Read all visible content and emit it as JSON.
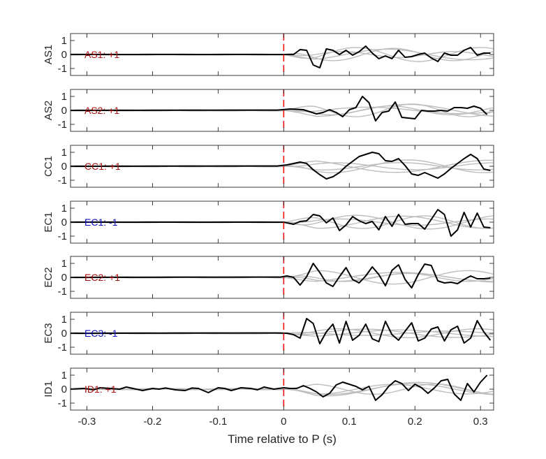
{
  "chart_data": {
    "type": "line",
    "xlabel": "Time relative to P (s)",
    "xlim": [
      -0.325,
      0.32
    ],
    "xticks": [
      -0.3,
      -0.2,
      -0.1,
      0,
      0.1,
      0.2,
      0.3
    ],
    "xtick_labels": [
      "-0.3",
      "-0.2",
      "-0.1",
      "0",
      "0.1",
      "0.2",
      "0.3"
    ],
    "ylim": [
      -1.5,
      1.5
    ],
    "yticks": [
      -1,
      0,
      1
    ],
    "ytick_labels": [
      "-1",
      "0",
      "1"
    ],
    "p_arrival_time": 0,
    "grid": false,
    "colors": {
      "main_trace": "#000000",
      "other_traces": "#bdbdbd",
      "p_marker": "#ee1111",
      "positive_polarity": "#aa1111",
      "negative_polarity": "#1111bb"
    },
    "panels": [
      {
        "station": "AS1",
        "polarity_label": "AS1: +1",
        "polarity": 1,
        "x": [
          -0.325,
          0.0,
          0.015,
          0.025,
          0.035,
          0.045,
          0.055,
          0.065,
          0.075,
          0.085,
          0.095,
          0.105,
          0.115,
          0.125,
          0.135,
          0.145,
          0.155,
          0.165,
          0.175,
          0.185,
          0.195,
          0.205,
          0.215,
          0.225,
          0.235,
          0.245,
          0.255,
          0.265,
          0.275,
          0.285,
          0.295,
          0.305,
          0.315
        ],
        "y": [
          0,
          0,
          0,
          0.35,
          0.3,
          -0.75,
          -0.95,
          0.4,
          0.3,
          0,
          0.3,
          -0.05,
          0.2,
          0.6,
          0.1,
          -0.3,
          -0.1,
          -0.3,
          0.3,
          -0.2,
          -0.15,
          0,
          0.1,
          -0.25,
          -0.5,
          0.1,
          -0.05,
          -0.05,
          0.3,
          0.5,
          -0.05,
          0.1,
          0.1
        ]
      },
      {
        "station": "AS2",
        "polarity_label": "AS2: +1",
        "polarity": 1,
        "x": [
          -0.325,
          -0.01,
          0.01,
          0.03,
          0.05,
          0.06,
          0.07,
          0.08,
          0.09,
          0.1,
          0.11,
          0.12,
          0.13,
          0.14,
          0.15,
          0.16,
          0.17,
          0.18,
          0.19,
          0.2,
          0.21,
          0.22,
          0.23,
          0.24,
          0.25,
          0.26,
          0.27,
          0.28,
          0.29,
          0.3,
          0.31
        ],
        "y": [
          0,
          0.02,
          0.1,
          0.05,
          -0.25,
          -0.15,
          0.05,
          -0.15,
          -0.45,
          0.05,
          0.2,
          1.0,
          0.55,
          -0.75,
          -0.15,
          -0.05,
          0.6,
          -0.5,
          -0.55,
          -0.6,
          0,
          -0.05,
          -0.05,
          0,
          -0.05,
          0.2,
          0.2,
          0.15,
          0.3,
          0.15,
          -0.3
        ]
      },
      {
        "station": "CC1",
        "polarity_label": "CC1: +1",
        "polarity": 1,
        "x": [
          -0.325,
          -0.01,
          0.005,
          0.015,
          0.025,
          0.035,
          0.045,
          0.055,
          0.065,
          0.075,
          0.085,
          0.095,
          0.105,
          0.115,
          0.125,
          0.135,
          0.145,
          0.155,
          0.165,
          0.175,
          0.185,
          0.195,
          0.205,
          0.215,
          0.225,
          0.235,
          0.245,
          0.255,
          0.265,
          0.275,
          0.285,
          0.295,
          0.305,
          0.315
        ],
        "y": [
          0,
          0.02,
          0.1,
          0.2,
          0.3,
          0.2,
          -0.25,
          -0.6,
          -0.9,
          -0.75,
          -0.45,
          0,
          0.35,
          0.7,
          0.85,
          1.0,
          0.9,
          0.4,
          0.35,
          0.55,
          0.05,
          -0.55,
          -0.65,
          -0.45,
          -0.65,
          -0.85,
          -0.55,
          -0.15,
          0.2,
          0.55,
          0.85,
          0.55,
          -0.2,
          -0.3
        ]
      },
      {
        "station": "EC1",
        "polarity_label": "EC1: -1",
        "polarity": -1,
        "x": [
          -0.325,
          0.0,
          0.015,
          0.025,
          0.035,
          0.045,
          0.055,
          0.065,
          0.075,
          0.085,
          0.095,
          0.105,
          0.115,
          0.125,
          0.135,
          0.145,
          0.155,
          0.165,
          0.175,
          0.185,
          0.195,
          0.205,
          0.215,
          0.225,
          0.235,
          0.245,
          0.255,
          0.265,
          0.275,
          0.285,
          0.295,
          0.305,
          0.315
        ],
        "y": [
          0,
          0,
          -0.15,
          0.05,
          0.1,
          0.55,
          0.45,
          -0.05,
          0.3,
          -0.6,
          -0.2,
          0.4,
          0.1,
          -0.1,
          0.05,
          -0.55,
          0.4,
          -0.3,
          0.55,
          -0.15,
          -0.1,
          -0.1,
          -0.5,
          0.2,
          0.9,
          0.55,
          -1.0,
          -0.55,
          0.7,
          -0.35,
          0.65,
          -0.35,
          -0.4
        ]
      },
      {
        "station": "EC2",
        "polarity_label": "EC2: +1",
        "polarity": 1,
        "x": [
          -0.325,
          -0.005,
          0.005,
          0.015,
          0.025,
          0.035,
          0.045,
          0.055,
          0.065,
          0.075,
          0.085,
          0.095,
          0.105,
          0.115,
          0.125,
          0.135,
          0.145,
          0.155,
          0.165,
          0.175,
          0.185,
          0.195,
          0.205,
          0.215,
          0.225,
          0.235,
          0.245,
          0.255,
          0.265,
          0.275,
          0.285,
          0.295,
          0.305,
          0.315
        ],
        "y": [
          0,
          0.02,
          0.1,
          0,
          -0.55,
          0.05,
          1.0,
          0.35,
          -0.4,
          -0.65,
          0.05,
          0.7,
          -0.15,
          -0.4,
          0.1,
          0.75,
          0.2,
          -0.6,
          0.5,
          0.9,
          -0.15,
          -0.75,
          0.2,
          0.95,
          0.85,
          -0.25,
          -0.4,
          -0.35,
          -0.45,
          -0.15,
          0.1,
          -0.1,
          -0.1,
          -0.05
        ]
      },
      {
        "station": "EC3",
        "polarity_label": "EC3: -1",
        "polarity": -1,
        "x": [
          -0.325,
          -0.01,
          0.005,
          0.015,
          0.025,
          0.035,
          0.045,
          0.055,
          0.065,
          0.075,
          0.085,
          0.095,
          0.105,
          0.115,
          0.125,
          0.135,
          0.145,
          0.155,
          0.165,
          0.175,
          0.185,
          0.195,
          0.205,
          0.215,
          0.225,
          0.235,
          0.245,
          0.255,
          0.265,
          0.275,
          0.285,
          0.295,
          0.305,
          0.315
        ],
        "y": [
          0,
          0.02,
          0,
          -0.1,
          -0.35,
          1.05,
          0.7,
          -0.75,
          0.1,
          0.65,
          -0.7,
          0.85,
          -0.5,
          -0.15,
          0.65,
          -0.4,
          -0.6,
          0.85,
          -0.1,
          -0.5,
          0.15,
          0.75,
          -0.55,
          -0.35,
          0.3,
          0.45,
          -0.55,
          0.25,
          0.5,
          -0.7,
          -0.35,
          0.9,
          0.1,
          -0.5
        ]
      },
      {
        "station": "ID1",
        "polarity_label": "ID1: +1",
        "polarity": 1,
        "x": [
          -0.325,
          -0.305,
          -0.29,
          -0.28,
          -0.265,
          -0.25,
          -0.24,
          -0.23,
          -0.215,
          -0.2,
          -0.19,
          -0.18,
          -0.165,
          -0.15,
          -0.14,
          -0.13,
          -0.115,
          -0.1,
          -0.09,
          -0.08,
          -0.065,
          -0.05,
          -0.04,
          -0.03,
          -0.015,
          0.0,
          0.01,
          0.02,
          0.03,
          0.04,
          0.05,
          0.06,
          0.07,
          0.08,
          0.09,
          0.1,
          0.11,
          0.12,
          0.13,
          0.14,
          0.15,
          0.16,
          0.17,
          0.18,
          0.19,
          0.2,
          0.21,
          0.22,
          0.23,
          0.24,
          0.25,
          0.26,
          0.27,
          0.28,
          0.29,
          0.3,
          0.31
        ],
        "y": [
          0,
          0.05,
          -0.05,
          0.1,
          0.05,
          0,
          0.15,
          0.05,
          -0.1,
          0.05,
          0,
          0.08,
          -0.05,
          -0.1,
          0.08,
          0.05,
          -0.25,
          0.1,
          0.05,
          -0.1,
          0.1,
          0.05,
          -0.05,
          0.15,
          0,
          0.1,
          0.05,
          0.05,
          0.25,
          0.05,
          -0.2,
          -0.55,
          -0.3,
          0.3,
          0.5,
          0.35,
          0.2,
          -0.05,
          0.2,
          -0.8,
          -0.4,
          0.2,
          0.6,
          0.4,
          -0.1,
          0.35,
          0.1,
          -0.3,
          0.1,
          0.6,
          0.7,
          -0.35,
          -0.8,
          0.4,
          -0.2,
          0.5,
          1.0
        ]
      }
    ]
  }
}
